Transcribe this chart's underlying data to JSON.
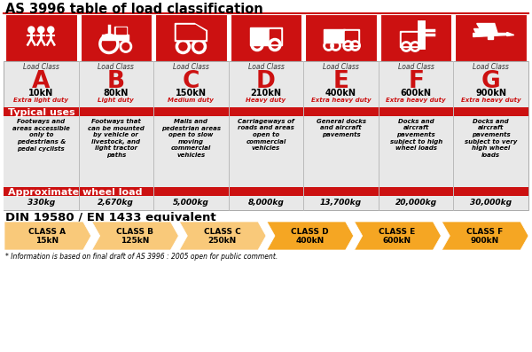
{
  "title": "AS 3996 table of load classification",
  "red": "#cc1111",
  "gray_bg": "#e8e8e8",
  "white": "#ffffff",
  "classes": [
    "A",
    "B",
    "C",
    "D",
    "E",
    "F",
    "G"
  ],
  "loads": [
    "10kN",
    "80kN",
    "150kN",
    "210kN",
    "400kN",
    "600kN",
    "900kN"
  ],
  "duty": [
    "Extra light duty",
    "Light duty",
    "Medium duty",
    "Heavy duty",
    "Extra heavy duty",
    "Extra heavy duty",
    "Extra heavy duty"
  ],
  "typical_uses": [
    "Footways and\nareas accessible\nonly to\npedestrians &\npedal cyclists",
    "Footways that\ncan be mounted\nby vehicle or\nlivestock, and\nlight tractor\npaths",
    "Malls and\npedestrian areas\nopen to slow\nmoving\ncommercial\nvehicles",
    "Carriageways of\nroads and areas\nopen to\ncommercial\nvehicles",
    "General docks\nand aircraft\npavements",
    "Docks and\naircraft\npavements\nsubject to high\nwheel loads",
    "Docks and\naircraft\npavements\nsubject to very\nhigh wheel\nloads"
  ],
  "wheel_loads": [
    "330kg",
    "2,670kg",
    "5,000kg",
    "8,000kg",
    "13,700kg",
    "20,000kg",
    "30,000kg"
  ],
  "din_classes": [
    "CLASS A\n15kN",
    "CLASS B\n125kN",
    "CLASS C\n250kN",
    "CLASS D\n400kN",
    "CLASS E\n600kN",
    "CLASS F\n900kN"
  ],
  "din_colors": [
    "#f9c97a",
    "#f9c97a",
    "#f9c97a",
    "#f5a623",
    "#f5a623",
    "#f5a623"
  ],
  "din_title": "DIN 19580 / EN 1433 equivalent",
  "footnote": "* Information is based on final draft of AS 3996 : 2005 open for public comment."
}
